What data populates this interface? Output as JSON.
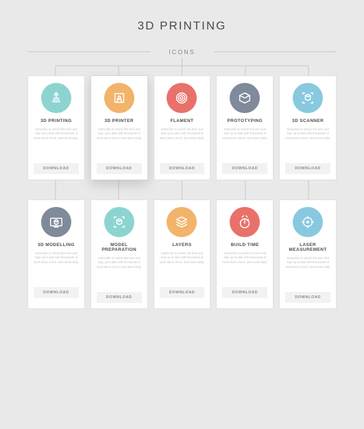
{
  "title": "3D PRINTING",
  "subtitle": "ICONS",
  "filler_text": "Subscribe to unlock this item and Sign up to date with thousands of stock items check. New items daily.",
  "button_label": "DOWNLOAD",
  "connector_color": "#c8c8c8",
  "cards": [
    {
      "label": "3D PRINTING",
      "color": "#8dd4d1",
      "icon": "printing",
      "highlight": false
    },
    {
      "label": "3D PRINTER",
      "color": "#f2b36b",
      "icon": "printer",
      "highlight": true
    },
    {
      "label": "FLAMENT",
      "color": "#e9716b",
      "icon": "filament",
      "highlight": false
    },
    {
      "label": "PROTOTYPING",
      "color": "#7f8a9b",
      "icon": "proto",
      "highlight": false
    },
    {
      "label": "3D SCANNER",
      "color": "#88c9e0",
      "icon": "scanner",
      "highlight": false
    },
    {
      "label": "3D MODELLING",
      "color": "#7f8a9b",
      "icon": "modelling",
      "highlight": false
    },
    {
      "label": "MODEL PREPARATION",
      "color": "#8dd4d1",
      "icon": "prep",
      "highlight": false
    },
    {
      "label": "LAYERS",
      "color": "#f2b36b",
      "icon": "layers",
      "highlight": false
    },
    {
      "label": "BUILD TIME",
      "color": "#e9716b",
      "icon": "buildtime",
      "highlight": false
    },
    {
      "label": "LASER MEASUREMENT",
      "color": "#88c9e0",
      "icon": "laser",
      "highlight": false
    }
  ]
}
